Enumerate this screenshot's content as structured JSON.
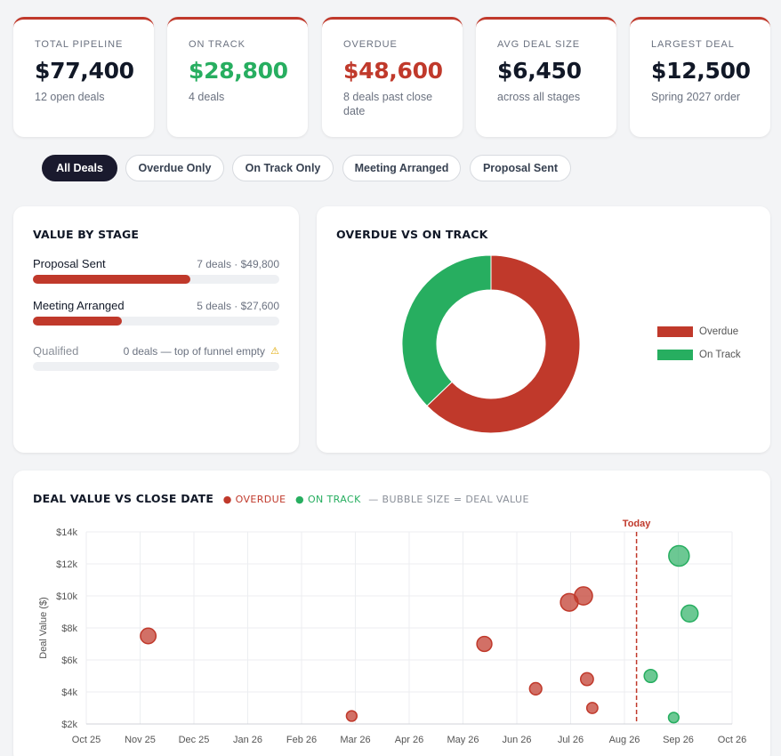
{
  "kpis": [
    {
      "label": "TOTAL PIPELINE",
      "value": "$77,400",
      "sub": "12 open deals",
      "value_color": "#111827"
    },
    {
      "label": "ON TRACK",
      "value": "$28,800",
      "sub": "4 deals",
      "value_color": "#27ae60"
    },
    {
      "label": "OVERDUE",
      "value": "$48,600",
      "sub": "8 deals past close date",
      "value_color": "#c0392b"
    },
    {
      "label": "AVG DEAL SIZE",
      "value": "$6,450",
      "sub": "across all stages",
      "value_color": "#111827"
    },
    {
      "label": "LARGEST DEAL",
      "value": "$12,500",
      "sub": "Spring 2027 order",
      "value_color": "#111827"
    }
  ],
  "filters": [
    "All Deals",
    "Overdue Only",
    "On Track Only",
    "Meeting Arranged",
    "Proposal Sent"
  ],
  "active_filter": "All Deals",
  "stage_card": {
    "title": "VALUE BY STAGE",
    "stages": [
      {
        "name": "Proposal Sent",
        "meta": "7 deals · $49,800",
        "fraction": 0.64
      },
      {
        "name": "Meeting Arranged",
        "meta": "5 deals · $27,600",
        "fraction": 0.36
      },
      {
        "name": "Qualified",
        "meta": "0 deals — top of funnel empty",
        "fraction": 0,
        "warn_icon": "warning-icon"
      }
    ]
  },
  "donut_card": {
    "title": "OVERDUE VS ON TRACK",
    "legend": [
      {
        "label": "Overdue",
        "color": "#c0392b"
      },
      {
        "label": "On Track",
        "color": "#27ae60"
      }
    ]
  },
  "scatter_card": {
    "title": "DEAL VALUE VS CLOSE DATE",
    "legend_overdue": "OVERDUE",
    "legend_ontrack": "ON TRACK",
    "legend_note": "— BUBBLE SIZE = DEAL VALUE",
    "today_label": "Today"
  },
  "colors": {
    "overdue": "#c0392b",
    "ontrack": "#27ae60",
    "dark": "#1a1a2e"
  },
  "chart_data": [
    {
      "type": "pie",
      "title": "OVERDUE VS ON TRACK",
      "categories": [
        "Overdue",
        "On Track"
      ],
      "values": [
        48600,
        28800
      ],
      "donut": true,
      "legend": "right"
    },
    {
      "type": "scatter",
      "title": "DEAL VALUE VS CLOSE DATE",
      "ylabel": "Deal Value ($)",
      "xlabel": "",
      "x_ticks": [
        "Oct 25",
        "Nov 25",
        "Dec 25",
        "Jan 26",
        "Feb 26",
        "Mar 26",
        "Apr 26",
        "May 26",
        "Jun 26",
        "Jul 26",
        "Aug 26",
        "Sep 26",
        "Oct 26"
      ],
      "y_ticks": [
        "$2k",
        "$4k",
        "$6k",
        "$8k",
        "$10k",
        "$12k",
        "$14k"
      ],
      "xlim": [
        "2025-10-01",
        "2026-10-01"
      ],
      "ylim": [
        2000,
        14000
      ],
      "today": "2026-08-08",
      "grid": true,
      "series": [
        {
          "name": "Overdue",
          "color": "#c0392b",
          "points": [
            {
              "x": "2025-11-05",
              "y": 7500
            },
            {
              "x": "2026-02-28",
              "y": 2500
            },
            {
              "x": "2026-05-14",
              "y": 7000
            },
            {
              "x": "2026-06-12",
              "y": 4200
            },
            {
              "x": "2026-07-01",
              "y": 9600
            },
            {
              "x": "2026-07-09",
              "y": 10000
            },
            {
              "x": "2026-07-11",
              "y": 4800
            },
            {
              "x": "2026-07-14",
              "y": 3000
            }
          ]
        },
        {
          "name": "On Track",
          "color": "#27ae60",
          "points": [
            {
              "x": "2026-08-16",
              "y": 5000
            },
            {
              "x": "2026-08-29",
              "y": 2400
            },
            {
              "x": "2026-09-01",
              "y": 12500
            },
            {
              "x": "2026-09-07",
              "y": 8900
            }
          ]
        }
      ]
    }
  ]
}
